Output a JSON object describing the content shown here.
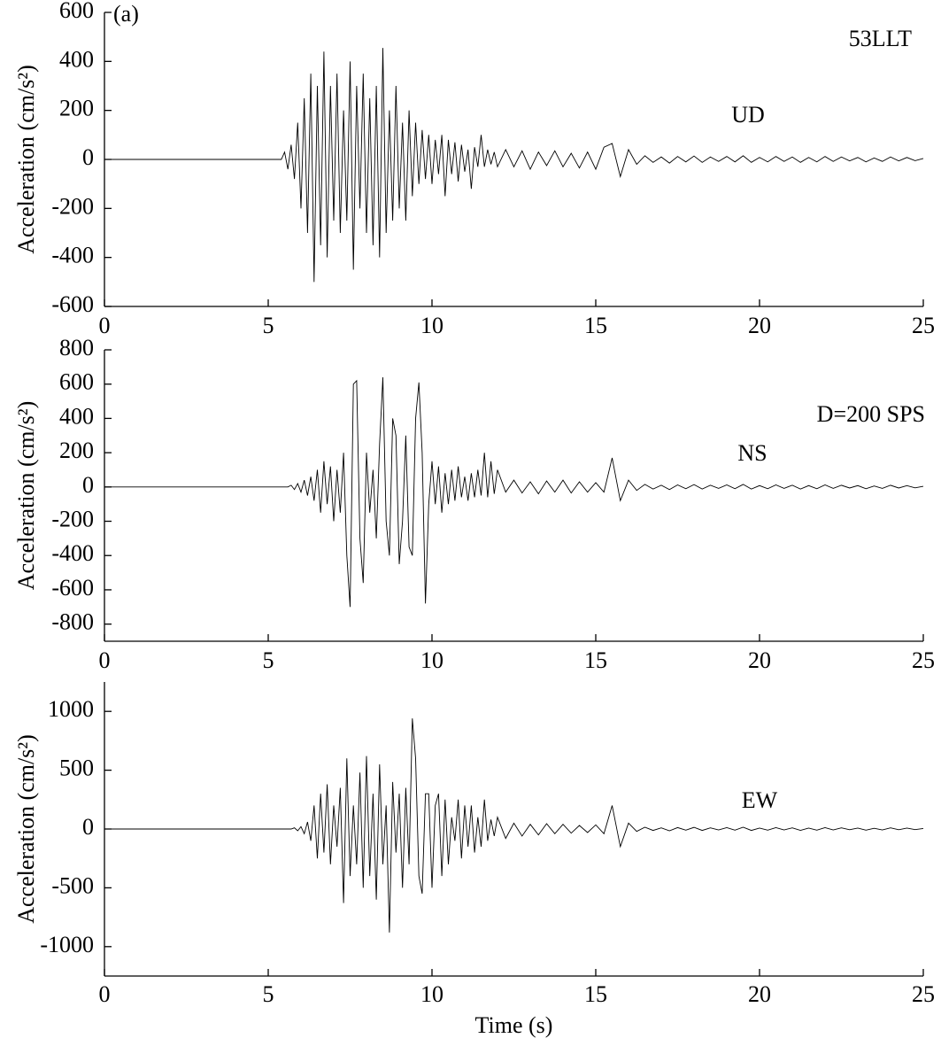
{
  "chart_data": [
    {
      "type": "line",
      "y_label": "Acceleration  (cm/s²)",
      "annotations": [
        "(a)",
        "53LLT",
        "UD"
      ],
      "color": "#000000",
      "xlim": [
        0,
        25
      ],
      "xticks": [
        0,
        5,
        10,
        15,
        20,
        25
      ],
      "ylim": [
        -600,
        600
      ],
      "yticks": [
        -600,
        -400,
        -200,
        0,
        200,
        400,
        600
      ],
      "x": [
        0,
        5.4,
        5.5,
        5.6,
        5.7,
        5.8,
        5.9,
        6,
        6.1,
        6.2,
        6.3,
        6.4,
        6.5,
        6.6,
        6.7,
        6.8,
        6.9,
        7,
        7.1,
        7.2,
        7.3,
        7.4,
        7.5,
        7.6,
        7.7,
        7.8,
        7.9,
        8,
        8.1,
        8.2,
        8.3,
        8.4,
        8.5,
        8.6,
        8.7,
        8.8,
        8.9,
        9,
        9.1,
        9.2,
        9.3,
        9.4,
        9.5,
        9.6,
        9.7,
        9.8,
        9.9,
        10,
        10.1,
        10.2,
        10.3,
        10.4,
        10.5,
        10.6,
        10.7,
        10.8,
        10.9,
        11,
        11.1,
        11.2,
        11.3,
        11.4,
        11.5,
        11.6,
        11.7,
        11.8,
        11.9,
        12,
        12.25,
        12.5,
        12.75,
        13,
        13.25,
        13.5,
        13.75,
        14,
        14.25,
        14.5,
        14.75,
        15,
        15.25,
        15.5,
        15.75,
        16,
        16.25,
        16.5,
        16.75,
        17,
        17.25,
        17.5,
        17.75,
        18,
        18.25,
        18.5,
        18.75,
        19,
        19.25,
        19.5,
        19.75,
        20,
        20.25,
        20.5,
        20.75,
        21,
        21.25,
        21.5,
        21.75,
        22,
        22.25,
        22.5,
        22.75,
        23,
        23.25,
        23.5,
        23.75,
        24,
        24.25,
        24.5,
        24.75,
        25
      ],
      "values": [
        0,
        0,
        30,
        -40,
        60,
        -80,
        150,
        -200,
        250,
        -300,
        350,
        -500,
        300,
        -350,
        440,
        -400,
        300,
        -250,
        350,
        -300,
        200,
        -250,
        400,
        -450,
        300,
        -200,
        350,
        -300,
        250,
        -350,
        300,
        -400,
        455,
        -300,
        200,
        -250,
        300,
        -200,
        150,
        -250,
        200,
        -150,
        150,
        -100,
        120,
        -80,
        100,
        -100,
        80,
        -60,
        100,
        -150,
        80,
        -60,
        70,
        -90,
        60,
        -50,
        40,
        -120,
        50,
        -30,
        100,
        -30,
        40,
        -20,
        30,
        -30,
        40,
        -30,
        35,
        -40,
        30,
        -25,
        35,
        -30,
        25,
        -35,
        30,
        -40,
        50,
        65,
        -70,
        40,
        -20,
        15,
        -12,
        10,
        -15,
        12,
        -10,
        14,
        -12,
        10,
        -8,
        12,
        -10,
        15,
        -12,
        8,
        -10,
        12,
        -8,
        10,
        -12,
        8,
        -10,
        12,
        -8,
        10,
        -6,
        8,
        -10,
        6,
        -8,
        10,
        -6,
        8,
        -5,
        4
      ]
    },
    {
      "type": "line",
      "y_label": "Acceleration  (cm/s²)",
      "annotations": [
        "D=200 SPS",
        "NS"
      ],
      "color": "#000000",
      "xlim": [
        0,
        25
      ],
      "xticks": [
        0,
        5,
        10,
        15,
        20,
        25
      ],
      "ylim": [
        -900,
        800
      ],
      "yticks": [
        -800,
        -600,
        -400,
        -200,
        0,
        200,
        400,
        600,
        800
      ],
      "x": [
        0,
        5.4,
        5.5,
        5.6,
        5.7,
        5.8,
        5.9,
        6,
        6.1,
        6.2,
        6.3,
        6.4,
        6.5,
        6.6,
        6.7,
        6.8,
        6.9,
        7,
        7.1,
        7.2,
        7.3,
        7.4,
        7.5,
        7.6,
        7.7,
        7.8,
        7.9,
        8,
        8.1,
        8.2,
        8.3,
        8.4,
        8.5,
        8.6,
        8.7,
        8.8,
        8.9,
        9,
        9.1,
        9.2,
        9.3,
        9.4,
        9.5,
        9.6,
        9.7,
        9.8,
        9.9,
        10,
        10.1,
        10.2,
        10.3,
        10.4,
        10.5,
        10.6,
        10.7,
        10.8,
        10.9,
        11,
        11.1,
        11.2,
        11.3,
        11.4,
        11.5,
        11.6,
        11.7,
        11.8,
        11.9,
        12,
        12.25,
        12.5,
        12.75,
        13,
        13.25,
        13.5,
        13.75,
        14,
        14.25,
        14.5,
        14.75,
        15,
        15.25,
        15.5,
        15.75,
        16,
        16.25,
        16.5,
        16.75,
        17,
        17.25,
        17.5,
        17.75,
        18,
        18.25,
        18.5,
        18.75,
        19,
        19.25,
        19.5,
        19.75,
        20,
        20.25,
        20.5,
        20.75,
        21,
        21.25,
        21.5,
        21.75,
        22,
        22.25,
        22.5,
        22.75,
        23,
        23.25,
        23.5,
        23.75,
        24,
        24.25,
        24.5,
        24.75,
        25
      ],
      "values": [
        0,
        0,
        0,
        0,
        10,
        -15,
        20,
        -30,
        40,
        -50,
        60,
        -80,
        100,
        -150,
        150,
        -100,
        120,
        -200,
        100,
        -150,
        200,
        -400,
        -700,
        600,
        620,
        -300,
        -560,
        200,
        -150,
        100,
        -300,
        250,
        640,
        -200,
        -400,
        400,
        300,
        -450,
        -200,
        300,
        -350,
        -400,
        400,
        610,
        200,
        -680,
        -100,
        150,
        -100,
        120,
        -150,
        80,
        -100,
        100,
        -80,
        120,
        -60,
        60,
        -80,
        80,
        -60,
        100,
        -50,
        200,
        -60,
        150,
        -40,
        100,
        -30,
        40,
        -35,
        30,
        -40,
        35,
        -30,
        40,
        -35,
        30,
        -30,
        25,
        -30,
        170,
        -80,
        40,
        -20,
        15,
        -12,
        10,
        -15,
        12,
        -10,
        14,
        -12,
        10,
        -8,
        12,
        -10,
        15,
        -12,
        8,
        -10,
        12,
        -8,
        10,
        -12,
        8,
        -10,
        12,
        -8,
        10,
        -6,
        8,
        -10,
        6,
        -8,
        10,
        -6,
        8,
        -5,
        4
      ]
    },
    {
      "type": "line",
      "y_label": "Acceleration  (cm/s²)",
      "x_label": "Time (s)",
      "annotations": [
        "EW"
      ],
      "color": "#000000",
      "xlim": [
        0,
        25
      ],
      "xticks": [
        0,
        5,
        10,
        15,
        20,
        25
      ],
      "ylim": [
        -1250,
        1250
      ],
      "yticks": [
        -1000,
        -500,
        0,
        500,
        1000
      ],
      "x": [
        0,
        5.4,
        5.5,
        5.6,
        5.7,
        5.8,
        5.9,
        6,
        6.1,
        6.2,
        6.3,
        6.4,
        6.5,
        6.6,
        6.7,
        6.8,
        6.9,
        7,
        7.1,
        7.2,
        7.3,
        7.4,
        7.5,
        7.6,
        7.7,
        7.8,
        7.9,
        8,
        8.1,
        8.2,
        8.3,
        8.4,
        8.5,
        8.6,
        8.7,
        8.8,
        8.9,
        9,
        9.1,
        9.2,
        9.3,
        9.4,
        9.5,
        9.6,
        9.7,
        9.8,
        9.9,
        10,
        10.1,
        10.2,
        10.3,
        10.4,
        10.5,
        10.6,
        10.7,
        10.8,
        10.9,
        11,
        11.1,
        11.2,
        11.3,
        11.4,
        11.5,
        11.6,
        11.7,
        11.8,
        11.9,
        12,
        12.25,
        12.5,
        12.75,
        13,
        13.25,
        13.5,
        13.75,
        14,
        14.25,
        14.5,
        14.75,
        15,
        15.25,
        15.5,
        15.75,
        16,
        16.25,
        16.5,
        16.75,
        17,
        17.25,
        17.5,
        17.75,
        18,
        18.25,
        18.5,
        18.75,
        19,
        19.25,
        19.5,
        19.75,
        20,
        20.25,
        20.5,
        20.75,
        21,
        21.25,
        21.5,
        21.75,
        22,
        22.25,
        22.5,
        22.75,
        23,
        23.25,
        23.5,
        23.75,
        24,
        24.25,
        24.5,
        24.75,
        25
      ],
      "values": [
        0,
        0,
        0,
        0,
        0,
        10,
        -15,
        20,
        -40,
        60,
        -100,
        200,
        -250,
        300,
        -200,
        380,
        -300,
        200,
        -150,
        350,
        -630,
        600,
        -400,
        200,
        -300,
        480,
        -500,
        620,
        -400,
        300,
        -600,
        550,
        -300,
        200,
        -880,
        400,
        -200,
        300,
        -500,
        350,
        -300,
        940,
        600,
        -400,
        -550,
        300,
        300,
        -500,
        200,
        300,
        -400,
        250,
        -300,
        100,
        -100,
        250,
        -250,
        200,
        -150,
        200,
        -200,
        100,
        -150,
        250,
        -100,
        80,
        -60,
        100,
        -80,
        50,
        -60,
        40,
        -50,
        45,
        -40,
        40,
        -35,
        30,
        -30,
        35,
        -40,
        200,
        -150,
        50,
        -20,
        15,
        -12,
        10,
        -15,
        12,
        -10,
        14,
        -12,
        10,
        -8,
        12,
        -10,
        15,
        -12,
        8,
        -10,
        12,
        -8,
        10,
        -12,
        8,
        -10,
        12,
        -8,
        10,
        -6,
        8,
        -10,
        6,
        -8,
        10,
        -6,
        8,
        -5,
        4
      ]
    }
  ]
}
